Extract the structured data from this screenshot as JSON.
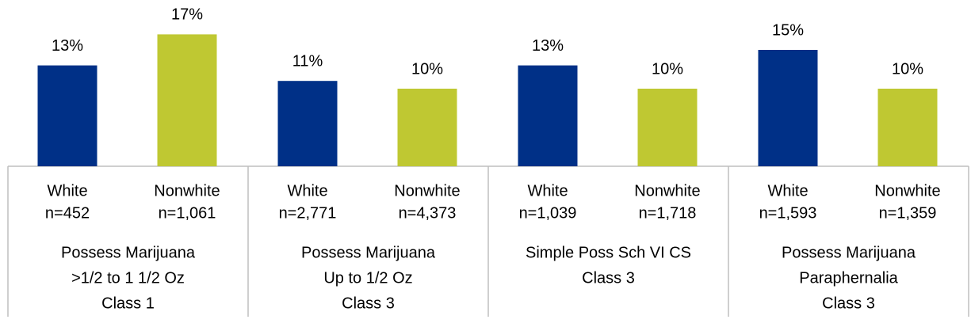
{
  "chart_data": {
    "type": "bar",
    "categories": [
      [
        "Possess Marijuana",
        ">1/2 to 1 1/2 Oz",
        "Class 1"
      ],
      [
        "Possess Marijuana",
        "Up to 1/2 Oz",
        "Class 3"
      ],
      [
        "Simple Poss Sch VI CS",
        "Class 3"
      ],
      [
        "Possess Marijuana",
        "Paraphernalia",
        "Class 3"
      ]
    ],
    "series": [
      {
        "name": "White",
        "color": "#003087",
        "values": [
          13,
          11,
          13,
          15
        ],
        "value_labels": [
          "13%",
          "11%",
          "13%",
          "15%"
        ],
        "n": [
          "n=452",
          "n=2,771",
          "n=1,039",
          "n=1,593"
        ]
      },
      {
        "name": "Nonwhite",
        "color": "#bfc832",
        "values": [
          17,
          10,
          10,
          10
        ],
        "value_labels": [
          "17%",
          "10%",
          "10%",
          "10%"
        ],
        "n": [
          "n=1,061",
          "n=4,373",
          "n=1,718",
          "n=1,359"
        ]
      }
    ]
  }
}
